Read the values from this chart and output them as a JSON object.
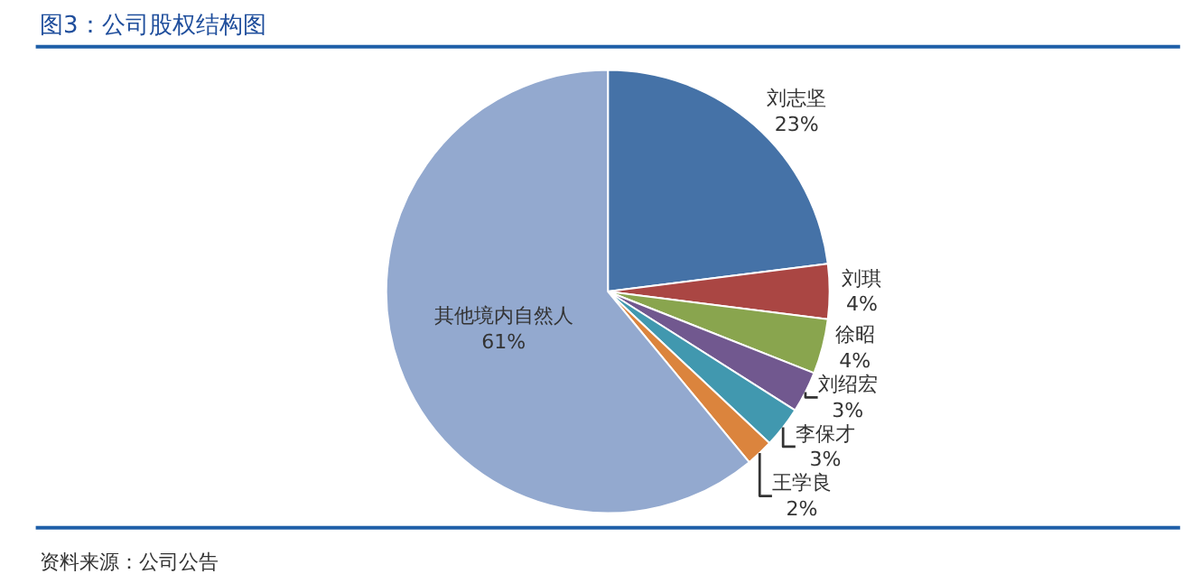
{
  "chart_data": {
    "type": "pie",
    "title": "图3：公司股权结构图",
    "categories": [
      "刘志坚",
      "刘琪",
      "徐昭",
      "刘绍宏",
      "李保才",
      "王学良",
      "其他境内自然人"
    ],
    "values": [
      23,
      4,
      4,
      3,
      3,
      2,
      61
    ],
    "colors": [
      "#4572a7",
      "#aa4643",
      "#89a54e",
      "#71588f",
      "#4198af",
      "#db843d",
      "#93a9cf"
    ],
    "value_labels": [
      "23%",
      "4%",
      "4%",
      "3%",
      "3%",
      "2%",
      "61%"
    ],
    "annotations": [
      "资料来源：公司公告"
    ],
    "legend": false
  }
}
